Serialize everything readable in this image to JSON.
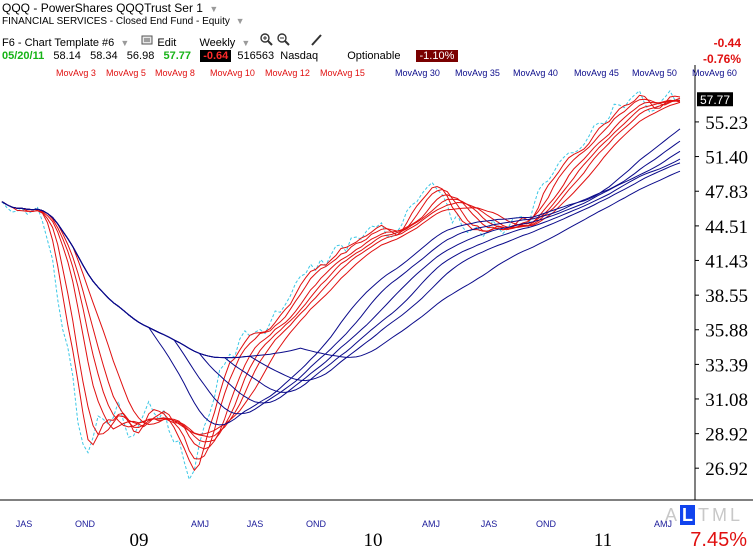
{
  "header": {
    "symbol": "QQQ",
    "separator": "-",
    "name": "PowerShares QQQTrust Ser 1",
    "sector": "FINANCIAL SERVICES - Closed End Fund - Equity",
    "template": "F6 - Chart Template #6",
    "edit_label": "Edit",
    "period": "Weekly",
    "change_abs": "-0.44",
    "change_pct": "-0.76%"
  },
  "quote": {
    "date": "05/20/11",
    "open": "58.14",
    "high": "58.34",
    "low": "56.98",
    "close": "57.77",
    "change": "-0.64",
    "volume": "516563",
    "exchange": "Nasdaq",
    "optionable": "Optionable",
    "change_pct": "-1.10%"
  },
  "footer": {
    "tml_letters": [
      "A",
      "L",
      "T",
      "M",
      "L"
    ],
    "selected_letter_index": 1,
    "pct": "7.45%"
  },
  "colors": {
    "short_ma": "#e01010",
    "long_ma": "#0a0a8a",
    "price": "#3cc8e6",
    "last_price_bg": "#000000"
  },
  "chart_data": {
    "type": "line",
    "title": "QQQ - PowerShares QQQTrust Ser 1",
    "last_price_label": "57.77",
    "y_ticks": [
      "55.23",
      "51.40",
      "47.83",
      "44.51",
      "41.43",
      "38.55",
      "35.88",
      "33.39",
      "31.08",
      "28.92",
      "26.92"
    ],
    "y_range": [
      25.2,
      60.5
    ],
    "y_scale": "log",
    "x_month_labels": [
      "JAS",
      "OND",
      "AMJ",
      "JAS",
      "OND",
      "AMJ",
      "JAS",
      "OND",
      "AMJ"
    ],
    "x_year_labels": [
      "09",
      "10",
      "11"
    ],
    "legend": [
      {
        "name": "MovAvg 3",
        "group": "short"
      },
      {
        "name": "MovAvg 5",
        "group": "short"
      },
      {
        "name": "MovAvg 8",
        "group": "short"
      },
      {
        "name": "MovAvg 10",
        "group": "short"
      },
      {
        "name": "MovAvg 12",
        "group": "short"
      },
      {
        "name": "MovAvg 15",
        "group": "short"
      },
      {
        "name": "MovAvg 30",
        "group": "long"
      },
      {
        "name": "MovAvg 35",
        "group": "long"
      },
      {
        "name": "MovAvg 40",
        "group": "long"
      },
      {
        "name": "MovAvg 45",
        "group": "long"
      },
      {
        "name": "MovAvg 50",
        "group": "long"
      },
      {
        "name": "MovAvg 60",
        "group": "long"
      }
    ],
    "price_weekly": [
      46.8,
      46.2,
      45.8,
      45.9,
      46.1,
      45.6,
      45.9,
      46.3,
      44.9,
      43.2,
      41.5,
      38.2,
      35.9,
      34.6,
      32.6,
      29.6,
      28.3,
      27.8,
      28.7,
      30.0,
      29.8,
      29.5,
      29.9,
      30.9,
      29.7,
      28.7,
      28.8,
      29.4,
      30.1,
      30.9,
      30.2,
      29.8,
      30.4,
      29.1,
      28.4,
      28.5,
      27.3,
      26.3,
      26.8,
      28.3,
      29.4,
      30.1,
      31.2,
      33.0,
      33.4,
      34.1,
      33.9,
      35.2,
      35.8,
      35.4,
      35.7,
      35.9,
      35.6,
      36.4,
      37.3,
      37.2,
      37.8,
      38.5,
      39.5,
      40.1,
      40.3,
      41.1,
      40.6,
      41.5,
      41.0,
      41.9,
      42.7,
      42.8,
      42.2,
      43.4,
      43.5,
      43.3,
      44.0,
      44.5,
      44.4,
      44.8,
      43.6,
      43.5,
      43.9,
      44.6,
      45.9,
      46.5,
      46.8,
      47.6,
      48.2,
      48.7,
      48.0,
      47.5,
      46.5,
      44.8,
      45.6,
      44.4,
      43.9,
      44.2,
      44.4,
      43.5,
      44.1,
      45.0,
      44.4,
      43.8,
      44.3,
      45.2,
      45.3,
      45.4,
      44.4,
      46.3,
      47.9,
      48.6,
      48.9,
      49.7,
      50.7,
      51.3,
      51.8,
      51.8,
      52.1,
      52.7,
      53.6,
      54.8,
      55.1,
      55.0,
      55.7,
      57.3,
      57.2,
      56.9,
      57.8,
      58.4,
      58.9,
      57.4,
      56.4,
      56.6,
      57.5,
      58.1,
      58.9,
      57.8,
      57.8
    ]
  }
}
